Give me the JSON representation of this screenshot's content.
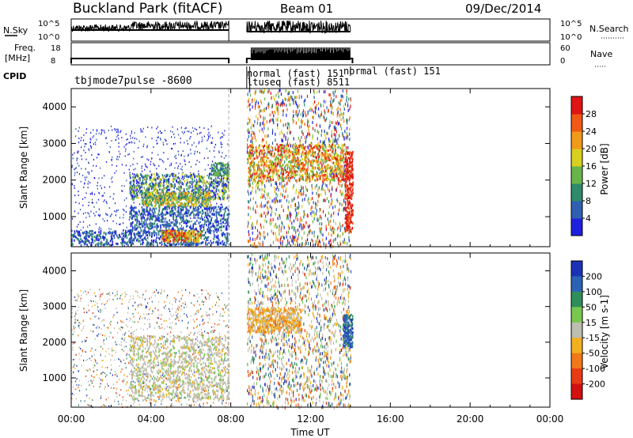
{
  "header": {
    "station": "Buckland Park (fitACF)",
    "beam": "Beam 01",
    "date": "09/Dec/2014"
  },
  "noise_panel": {
    "left_label": "N.Sky",
    "right_label": "N.Search",
    "left_ticks": [
      "10^5",
      "10^0"
    ],
    "right_ticks": [
      "10^5",
      "10^0"
    ]
  },
  "freq_panel": {
    "left_label_1": "Freq.",
    "left_label_2": "[MHz]",
    "right_label": "Nave",
    "left_ticks": [
      "18",
      "8"
    ],
    "right_ticks": [
      "60",
      "0"
    ]
  },
  "cpid": {
    "label": "CPID",
    "entries": [
      {
        "text": "tbjmode7pulse -8600",
        "start_hour": 0.0
      },
      {
        "text": "normal (fast) 151",
        "start_hour": 8.8
      },
      {
        "text": "ltuseq (fast) 8511",
        "start_hour": 8.8
      },
      {
        "text": "normal (fast) 151",
        "start_hour": 14.0
      }
    ]
  },
  "chart_data": [
    {
      "type": "heatmap",
      "name": "power",
      "ylabel": "Slant Range [km]",
      "colorbar_label": "Power [dB]",
      "colorbar_ticks": [
        "4",
        "8",
        "12",
        "16",
        "20",
        "24",
        "28"
      ],
      "ylim": [
        180,
        4500
      ],
      "ytick_labels": [
        "1000",
        "2000",
        "3000",
        "4000"
      ],
      "ytick_values": [
        1000,
        2000,
        3000,
        4000
      ],
      "colorbar_colors": [
        "#1f1fe0",
        "#2f5fb0",
        "#2e8a6a",
        "#69b44a",
        "#d8d020",
        "#f09a1a",
        "#f05a16",
        "#e01414"
      ],
      "data_extent_hours": [
        [
          0.0,
          8.0
        ],
        [
          8.8,
          14.0
        ]
      ]
    },
    {
      "type": "heatmap",
      "name": "velocity",
      "ylabel": "Slant Range [km]",
      "colorbar_label": "Velocity [m s-1]",
      "colorbar_ticks": [
        "200",
        "100",
        "50",
        "15",
        "-15",
        "-50",
        "-100",
        "-200"
      ],
      "ylim": [
        180,
        4500
      ],
      "ytick_labels": [
        "1000",
        "2000",
        "3000",
        "4000"
      ],
      "ytick_values": [
        1000,
        2000,
        3000,
        4000
      ],
      "colorbar_colors": [
        "#1c32b4",
        "#2c62b4",
        "#2f8e5a",
        "#78c850",
        "#bdbdb0",
        "#f0b020",
        "#f07818",
        "#e83a14",
        "#d21010"
      ],
      "data_extent_hours": [
        [
          0.0,
          8.0
        ],
        [
          8.8,
          14.0
        ]
      ]
    }
  ],
  "xaxis": {
    "label": "Time UT",
    "ticks": [
      "00:00",
      "04:00",
      "08:00",
      "12:00",
      "16:00",
      "20:00",
      "00:00"
    ],
    "range_hours": [
      0,
      24
    ]
  }
}
